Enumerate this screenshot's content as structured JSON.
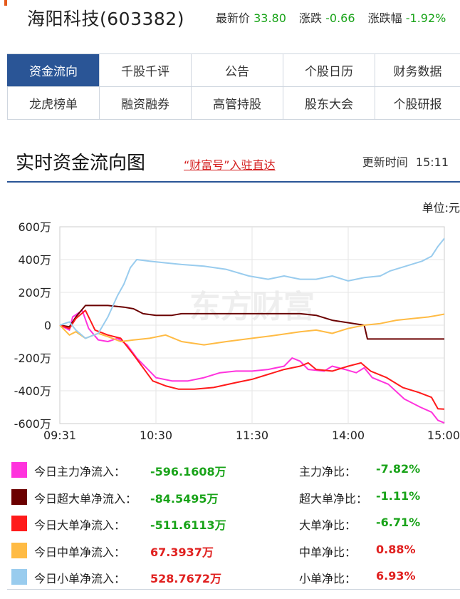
{
  "header": {
    "stock_title": "海阳科技(603382)",
    "price_label": "最新价",
    "price_value": "33.80",
    "change_label": "涨跌",
    "change_value": "-0.66",
    "pct_label": "涨跌幅",
    "pct_value": "-1.92%"
  },
  "tabs": [
    [
      "资金流向",
      "千股千评",
      "公告",
      "个股日历",
      "财务数据"
    ],
    [
      "龙虎榜单",
      "融资融券",
      "高管持股",
      "股东大会",
      "个股研报"
    ]
  ],
  "section": {
    "title": "实时资金流向图",
    "link": "“财富号”入驻直达",
    "update_label": "更新时间",
    "update_time": "15:11",
    "unit": "单位:元"
  },
  "chart_data": {
    "type": "line",
    "watermark": "东方财富",
    "x_ticks": [
      "09:31",
      "10:30",
      "11:30",
      "14:00",
      "15:00"
    ],
    "y_ticks": [
      "600万",
      "400万",
      "200万",
      "0",
      "-200万",
      "-400万",
      "-600万"
    ],
    "ylim": [
      -6000000,
      6000000
    ],
    "x_count": 240,
    "grid": true,
    "series": [
      {
        "name": "今日主力净流入",
        "color": "#ff33dd",
        "points": [
          [
            0,
            0
          ],
          [
            6,
            -300000
          ],
          [
            8,
            500000
          ],
          [
            14,
            900000
          ],
          [
            18,
            -200000
          ],
          [
            24,
            -900000
          ],
          [
            30,
            -1000000
          ],
          [
            36,
            -800000
          ],
          [
            42,
            -1200000
          ],
          [
            48,
            -2000000
          ],
          [
            54,
            -2600000
          ],
          [
            60,
            -3200000
          ],
          [
            70,
            -3400000
          ],
          [
            80,
            -3400000
          ],
          [
            90,
            -3200000
          ],
          [
            100,
            -2900000
          ],
          [
            110,
            -2800000
          ],
          [
            120,
            -2800000
          ],
          [
            130,
            -2700000
          ],
          [
            140,
            -2500000
          ],
          [
            145,
            -2000000
          ],
          [
            150,
            -2200000
          ],
          [
            155,
            -2700000
          ],
          [
            165,
            -2800000
          ],
          [
            170,
            -2500000
          ],
          [
            178,
            -2700000
          ],
          [
            185,
            -2900000
          ],
          [
            190,
            -2600000
          ],
          [
            195,
            -3200000
          ],
          [
            205,
            -3600000
          ],
          [
            215,
            -4500000
          ],
          [
            225,
            -5000000
          ],
          [
            232,
            -5300000
          ],
          [
            236,
            -5800000
          ],
          [
            240,
            -5961608
          ]
        ]
      },
      {
        "name": "今日超大单净流入",
        "color": "#6b0000",
        "points": [
          [
            0,
            0
          ],
          [
            6,
            -100000
          ],
          [
            10,
            500000
          ],
          [
            16,
            1200000
          ],
          [
            30,
            1200000
          ],
          [
            40,
            1100000
          ],
          [
            46,
            1000000
          ],
          [
            52,
            700000
          ],
          [
            60,
            600000
          ],
          [
            70,
            600000
          ],
          [
            76,
            700000
          ],
          [
            90,
            700000
          ],
          [
            110,
            700000
          ],
          [
            130,
            700000
          ],
          [
            150,
            700000
          ],
          [
            160,
            600000
          ],
          [
            170,
            300000
          ],
          [
            190,
            0
          ],
          [
            192,
            -845495
          ],
          [
            240,
            -845495
          ]
        ]
      },
      {
        "name": "今日大单净流入",
        "color": "#ff1a1a",
        "points": [
          [
            0,
            0
          ],
          [
            6,
            -200000
          ],
          [
            10,
            400000
          ],
          [
            16,
            900000
          ],
          [
            22,
            -300000
          ],
          [
            30,
            -600000
          ],
          [
            38,
            -800000
          ],
          [
            46,
            -1800000
          ],
          [
            52,
            -2600000
          ],
          [
            58,
            -3400000
          ],
          [
            66,
            -3700000
          ],
          [
            74,
            -3900000
          ],
          [
            84,
            -3900000
          ],
          [
            96,
            -3800000
          ],
          [
            110,
            -3500000
          ],
          [
            120,
            -3300000
          ],
          [
            130,
            -3000000
          ],
          [
            140,
            -2700000
          ],
          [
            150,
            -2500000
          ],
          [
            155,
            -2300000
          ],
          [
            160,
            -2700000
          ],
          [
            170,
            -2800000
          ],
          [
            180,
            -2500000
          ],
          [
            188,
            -2300000
          ],
          [
            194,
            -2800000
          ],
          [
            204,
            -3200000
          ],
          [
            214,
            -3800000
          ],
          [
            224,
            -4100000
          ],
          [
            232,
            -4400000
          ],
          [
            236,
            -5100000
          ],
          [
            240,
            -5116113
          ]
        ]
      },
      {
        "name": "今日中单净流入",
        "color": "#ffbb44",
        "points": [
          [
            0,
            0
          ],
          [
            6,
            -600000
          ],
          [
            10,
            -400000
          ],
          [
            16,
            -800000
          ],
          [
            24,
            -500000
          ],
          [
            30,
            -700000
          ],
          [
            38,
            -1000000
          ],
          [
            46,
            -900000
          ],
          [
            56,
            -800000
          ],
          [
            66,
            -600000
          ],
          [
            76,
            -1000000
          ],
          [
            90,
            -1200000
          ],
          [
            104,
            -1000000
          ],
          [
            120,
            -800000
          ],
          [
            136,
            -600000
          ],
          [
            150,
            -400000
          ],
          [
            160,
            -300000
          ],
          [
            170,
            -500000
          ],
          [
            180,
            -200000
          ],
          [
            190,
            0
          ],
          [
            200,
            100000
          ],
          [
            210,
            300000
          ],
          [
            220,
            400000
          ],
          [
            230,
            500000
          ],
          [
            236,
            600000
          ],
          [
            240,
            673937
          ]
        ]
      },
      {
        "name": "今日小单净流入",
        "color": "#99ccee",
        "points": [
          [
            0,
            0
          ],
          [
            6,
            200000
          ],
          [
            10,
            -300000
          ],
          [
            16,
            -800000
          ],
          [
            24,
            -500000
          ],
          [
            30,
            500000
          ],
          [
            36,
            1800000
          ],
          [
            40,
            2500000
          ],
          [
            44,
            3500000
          ],
          [
            48,
            4000000
          ],
          [
            56,
            3900000
          ],
          [
            66,
            3800000
          ],
          [
            76,
            3700000
          ],
          [
            90,
            3600000
          ],
          [
            104,
            3400000
          ],
          [
            118,
            3000000
          ],
          [
            130,
            2800000
          ],
          [
            140,
            3000000
          ],
          [
            150,
            2800000
          ],
          [
            160,
            2800000
          ],
          [
            170,
            3000000
          ],
          [
            180,
            2700000
          ],
          [
            190,
            2900000
          ],
          [
            200,
            3000000
          ],
          [
            206,
            3300000
          ],
          [
            216,
            3600000
          ],
          [
            226,
            3900000
          ],
          [
            232,
            4200000
          ],
          [
            236,
            4800000
          ],
          [
            240,
            5287672
          ]
        ]
      }
    ]
  },
  "legend": [
    {
      "name": "今日主力净流入：",
      "value": "-596.1608万",
      "color": "#ff33dd",
      "ratio_name": "主力净比：",
      "ratio_value": "-7.82%",
      "sign": "neg",
      "rsign": "neg"
    },
    {
      "name": "今日超大单净流入：",
      "value": "-84.5495万",
      "color": "#6b0000",
      "ratio_name": "超大单净比：",
      "ratio_value": "-1.11%",
      "sign": "neg",
      "rsign": "neg"
    },
    {
      "name": "今日大单净流入：",
      "value": "-511.6113万",
      "color": "#ff1a1a",
      "ratio_name": "大单净比：",
      "ratio_value": "-6.71%",
      "sign": "neg",
      "rsign": "neg"
    },
    {
      "name": "今日中单净流入：",
      "value": "67.3937万",
      "color": "#ffbb44",
      "ratio_name": "中单净比：",
      "ratio_value": "0.88%",
      "sign": "pos",
      "rsign": "pos"
    },
    {
      "name": "今日小单净流入：",
      "value": "528.7672万",
      "color": "#99ccee",
      "ratio_name": "小单净比：",
      "ratio_value": "6.93%",
      "sign": "pos",
      "rsign": "pos"
    }
  ]
}
